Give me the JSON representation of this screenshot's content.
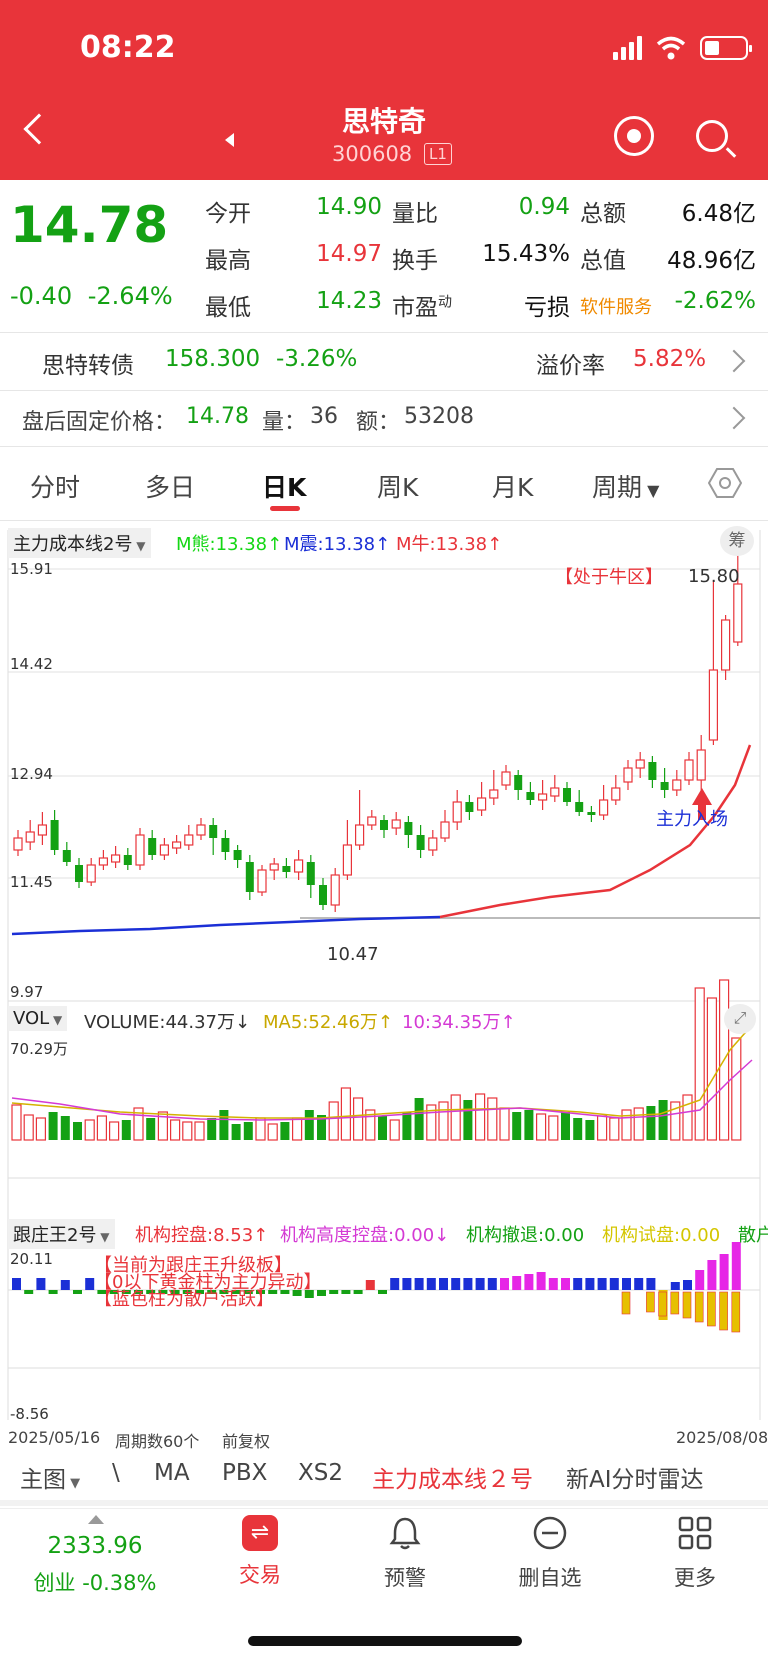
{
  "status": {
    "time": "08:22"
  },
  "header": {
    "name": "思特奇",
    "code": "300608",
    "level": "L1"
  },
  "quote": {
    "price": "14.78",
    "change": "-0.40",
    "change_pct": "-2.64%",
    "rows": [
      {
        "l1": "今开",
        "v1": "14.90",
        "l2": "量比",
        "v2": "0.94",
        "l3": "总额",
        "v3": "6.48亿"
      },
      {
        "l1": "最高",
        "v1": "14.97",
        "l2": "换手",
        "v2": "15.43%",
        "l3": "总值",
        "v3": "48.96亿"
      },
      {
        "l1": "最低",
        "v1": "14.23",
        "l2": "市盈",
        "l2_sup": "动",
        "v2": "亏损",
        "l3": "软件服务",
        "v3": "-2.62%"
      }
    ]
  },
  "bond": {
    "name": "思特转债",
    "price": "158.300",
    "pct": "-3.26%",
    "premium_label": "溢价率",
    "premium": "5.82%"
  },
  "after_hours": {
    "label": "盘后固定价格：",
    "price": "14.78",
    "vol_label": "量：",
    "vol": "36",
    "amt_label": "额：",
    "amt": "53208"
  },
  "tabs": [
    "分时",
    "多日",
    "日K",
    "周K",
    "月K",
    "周期"
  ],
  "main_chart": {
    "indicator": "主力成本线2号",
    "m_bear": "M熊:13.38↑",
    "m_shock": "M震:13.38↑",
    "m_bull": "M牛:13.38↑",
    "chip_label": "筹",
    "y_labels": [
      "15.91",
      "14.42",
      "12.94",
      "11.45",
      "9.97"
    ],
    "zone_label": "【处于牛区】",
    "high_label": "15.80",
    "low_label": "10.47",
    "entry_label": "主力入场"
  },
  "volume": {
    "indicator": "VOL",
    "volume": "VOLUME:44.37万↓",
    "ma5": "MA5:52.46万↑",
    "ma10": "10:34.35万↑",
    "max_label": "70.29万"
  },
  "gzw": {
    "indicator": "跟庄王2号",
    "control": "机构控盘:8.53↑",
    "high_control": "机构高度控盘:0.00↓",
    "withdraw": "机构撤退:0.00",
    "test": "机构试盘:0.00",
    "retail": "散户",
    "y_max": "20.11",
    "y_min": "-8.56",
    "notes": [
      "【当前为跟庄王升级板】",
      "【0以下黄金柱为主力异动】",
      "【蓝色柱为散户活跃】"
    ]
  },
  "footer_info": {
    "start": "2025/05/16",
    "count": "周期数60个",
    "adj": "前复权",
    "end": "2025/08/08"
  },
  "bottom_tabs": [
    "主图",
    "\\",
    "MA",
    "PBX",
    "XS2",
    "主力成本线２号",
    "新AI分时雷达"
  ],
  "bottom_bar": {
    "index_value": "2333.96",
    "index_label": "创业 -0.38%",
    "items": [
      "交易",
      "预警",
      "删自选",
      "更多"
    ]
  },
  "colors": {
    "red": "#e8343a",
    "green": "#14a114",
    "blue": "#1b2fd6"
  }
}
